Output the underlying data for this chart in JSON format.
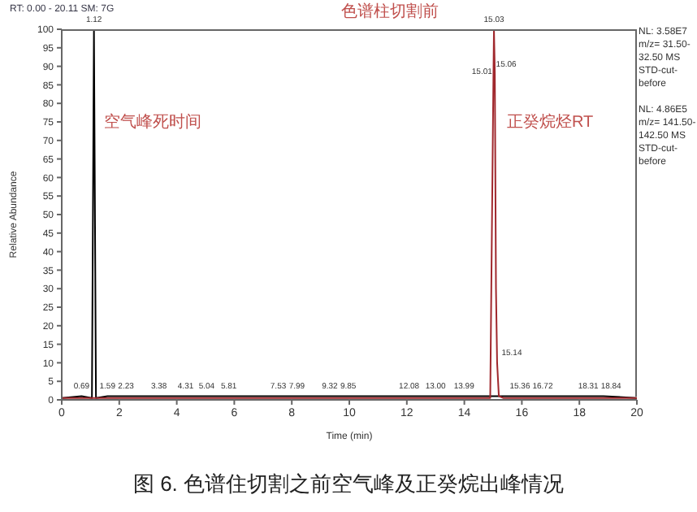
{
  "chart_data": {
    "type": "line",
    "title": "色谱柱切割前",
    "xlabel": "Time (min)",
    "ylabel": "Relative Abundance",
    "xlim": [
      0,
      20
    ],
    "xticks": [
      0,
      2,
      4,
      6,
      8,
      10,
      12,
      14,
      16,
      18,
      20
    ],
    "ylim": [
      0,
      100
    ],
    "yticks": [
      0,
      5,
      10,
      15,
      20,
      25,
      30,
      35,
      40,
      45,
      50,
      55,
      60,
      65,
      70,
      75,
      80,
      85,
      90,
      95,
      100
    ],
    "grid": false,
    "marker": "none",
    "line_style": "solid",
    "series": [
      {
        "color": "#000000",
        "x": [
          0,
          0.69,
          1.05,
          1.12,
          1.19,
          1.59,
          2.23,
          3.38,
          4.31,
          5.04,
          5.81,
          7.53,
          7.99,
          9.32,
          9.85,
          12.08,
          13.0,
          13.99,
          15.36,
          16.72,
          18.31,
          18.84,
          20
        ],
        "values": [
          0.5,
          1,
          0.5,
          100,
          0.5,
          1,
          1,
          1,
          1,
          1,
          1,
          1,
          1,
          1,
          1,
          1,
          1,
          1,
          1,
          1,
          1,
          1,
          0.5
        ]
      },
      {
        "color": "#a0282d",
        "x": [
          0,
          14.9,
          15.01,
          15.03,
          15.06,
          15.1,
          15.14,
          15.2,
          15.36,
          20
        ],
        "values": [
          0.5,
          0.5,
          86,
          100,
          88,
          30,
          10,
          1,
          0.5,
          0.5
        ]
      }
    ],
    "annotations": [
      "RT: 0.00 - 20.11  SM: 7G",
      "空气峰死时间",
      "正癸烷烃RT",
      "NL: 3.58E7 m/z= 31.50-32.50 MS STD-cut-before",
      "NL: 4.86E5 m/z= 141.50-142.50 MS STD-cut-before",
      "图 6. 色谱住切割之前空气峰及正癸烷出峰情况",
      {
        "text": "0.69",
        "x": 0.69,
        "y": 1
      },
      {
        "text": "1.12",
        "x": 1.12,
        "y": 100
      },
      {
        "text": "1.59",
        "x": 1.59,
        "y": 1
      },
      {
        "text": "2.23",
        "x": 2.23,
        "y": 1
      },
      {
        "text": "3.38",
        "x": 3.38,
        "y": 1
      },
      {
        "text": "4.31",
        "x": 4.31,
        "y": 1
      },
      {
        "text": "5.04",
        "x": 5.04,
        "y": 1
      },
      {
        "text": "5.81",
        "x": 5.81,
        "y": 1
      },
      {
        "text": "7.53",
        "x": 7.53,
        "y": 1
      },
      {
        "text": "7.99",
        "x": 7.99,
        "y": 1
      },
      {
        "text": "9.32",
        "x": 9.32,
        "y": 1
      },
      {
        "text": "9.85",
        "x": 9.85,
        "y": 1
      },
      {
        "text": "12.08",
        "x": 12.08,
        "y": 1
      },
      {
        "text": "13.00",
        "x": 13.0,
        "y": 1
      },
      {
        "text": "13.99",
        "x": 13.99,
        "y": 1
      },
      {
        "text": "15.01",
        "x": 15.01,
        "y": 86
      },
      {
        "text": "15.03",
        "x": 15.03,
        "y": 100
      },
      {
        "text": "15.06",
        "x": 15.06,
        "y": 88
      },
      {
        "text": "15.14",
        "x": 15.14,
        "y": 10
      },
      {
        "text": "15.36",
        "x": 15.36,
        "y": 1
      },
      {
        "text": "16.72",
        "x": 16.72,
        "y": 1
      },
      {
        "text": "18.31",
        "x": 18.31,
        "y": 1
      },
      {
        "text": "18.84",
        "x": 18.84,
        "y": 1
      }
    ]
  }
}
